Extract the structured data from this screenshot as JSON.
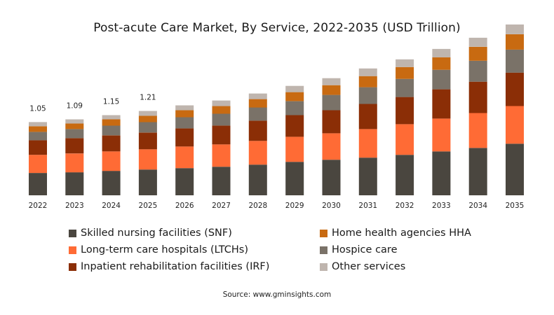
{
  "chart_data": {
    "type": "bar",
    "stacked": true,
    "title": "Post-acute Care Market, By Service, 2022-2035 (USD Trillion)",
    "source": "Source: www.gminsights.com",
    "categories": [
      "2022",
      "2023",
      "2024",
      "2025",
      "2026",
      "2027",
      "2028",
      "2029",
      "2030",
      "2031",
      "2032",
      "2033",
      "2034",
      "2035"
    ],
    "total_labels": [
      "1.05",
      "1.09",
      "1.15",
      "1.21",
      "",
      "",
      "",
      "",
      "",
      "",
      "",
      "",
      "",
      ""
    ],
    "ylim": [
      0,
      2.4
    ],
    "grid": false,
    "legend_position": "bottom",
    "series": [
      {
        "name": "Skilled nursing facilities (SNF)",
        "color": "#4a463f",
        "values": [
          0.32,
          0.33,
          0.35,
          0.37,
          0.39,
          0.41,
          0.44,
          0.48,
          0.51,
          0.54,
          0.58,
          0.63,
          0.68,
          0.74
        ]
      },
      {
        "name": "Long-term care hospitals (LTCHs)",
        "color": "#ff6b35",
        "values": [
          0.26,
          0.27,
          0.28,
          0.29,
          0.31,
          0.32,
          0.34,
          0.36,
          0.38,
          0.41,
          0.44,
          0.47,
          0.5,
          0.54
        ]
      },
      {
        "name": "Inpatient rehabilitation facilities (IRF)",
        "color": "#8b2e06",
        "values": [
          0.21,
          0.22,
          0.23,
          0.24,
          0.26,
          0.27,
          0.29,
          0.31,
          0.33,
          0.36,
          0.39,
          0.42,
          0.45,
          0.48
        ]
      },
      {
        "name": "Hospice care",
        "color": "#7a7268",
        "values": [
          0.12,
          0.13,
          0.14,
          0.15,
          0.16,
          0.17,
          0.19,
          0.2,
          0.22,
          0.24,
          0.26,
          0.28,
          0.3,
          0.33
        ]
      },
      {
        "name": "Home health agencies HHA",
        "color": "#c86a11",
        "values": [
          0.08,
          0.08,
          0.09,
          0.09,
          0.1,
          0.11,
          0.12,
          0.13,
          0.14,
          0.16,
          0.17,
          0.18,
          0.2,
          0.22
        ]
      },
      {
        "name": "Other services",
        "color": "#bfb5ae",
        "values": [
          0.06,
          0.06,
          0.06,
          0.07,
          0.07,
          0.08,
          0.08,
          0.09,
          0.1,
          0.11,
          0.11,
          0.12,
          0.13,
          0.14
        ]
      }
    ]
  }
}
